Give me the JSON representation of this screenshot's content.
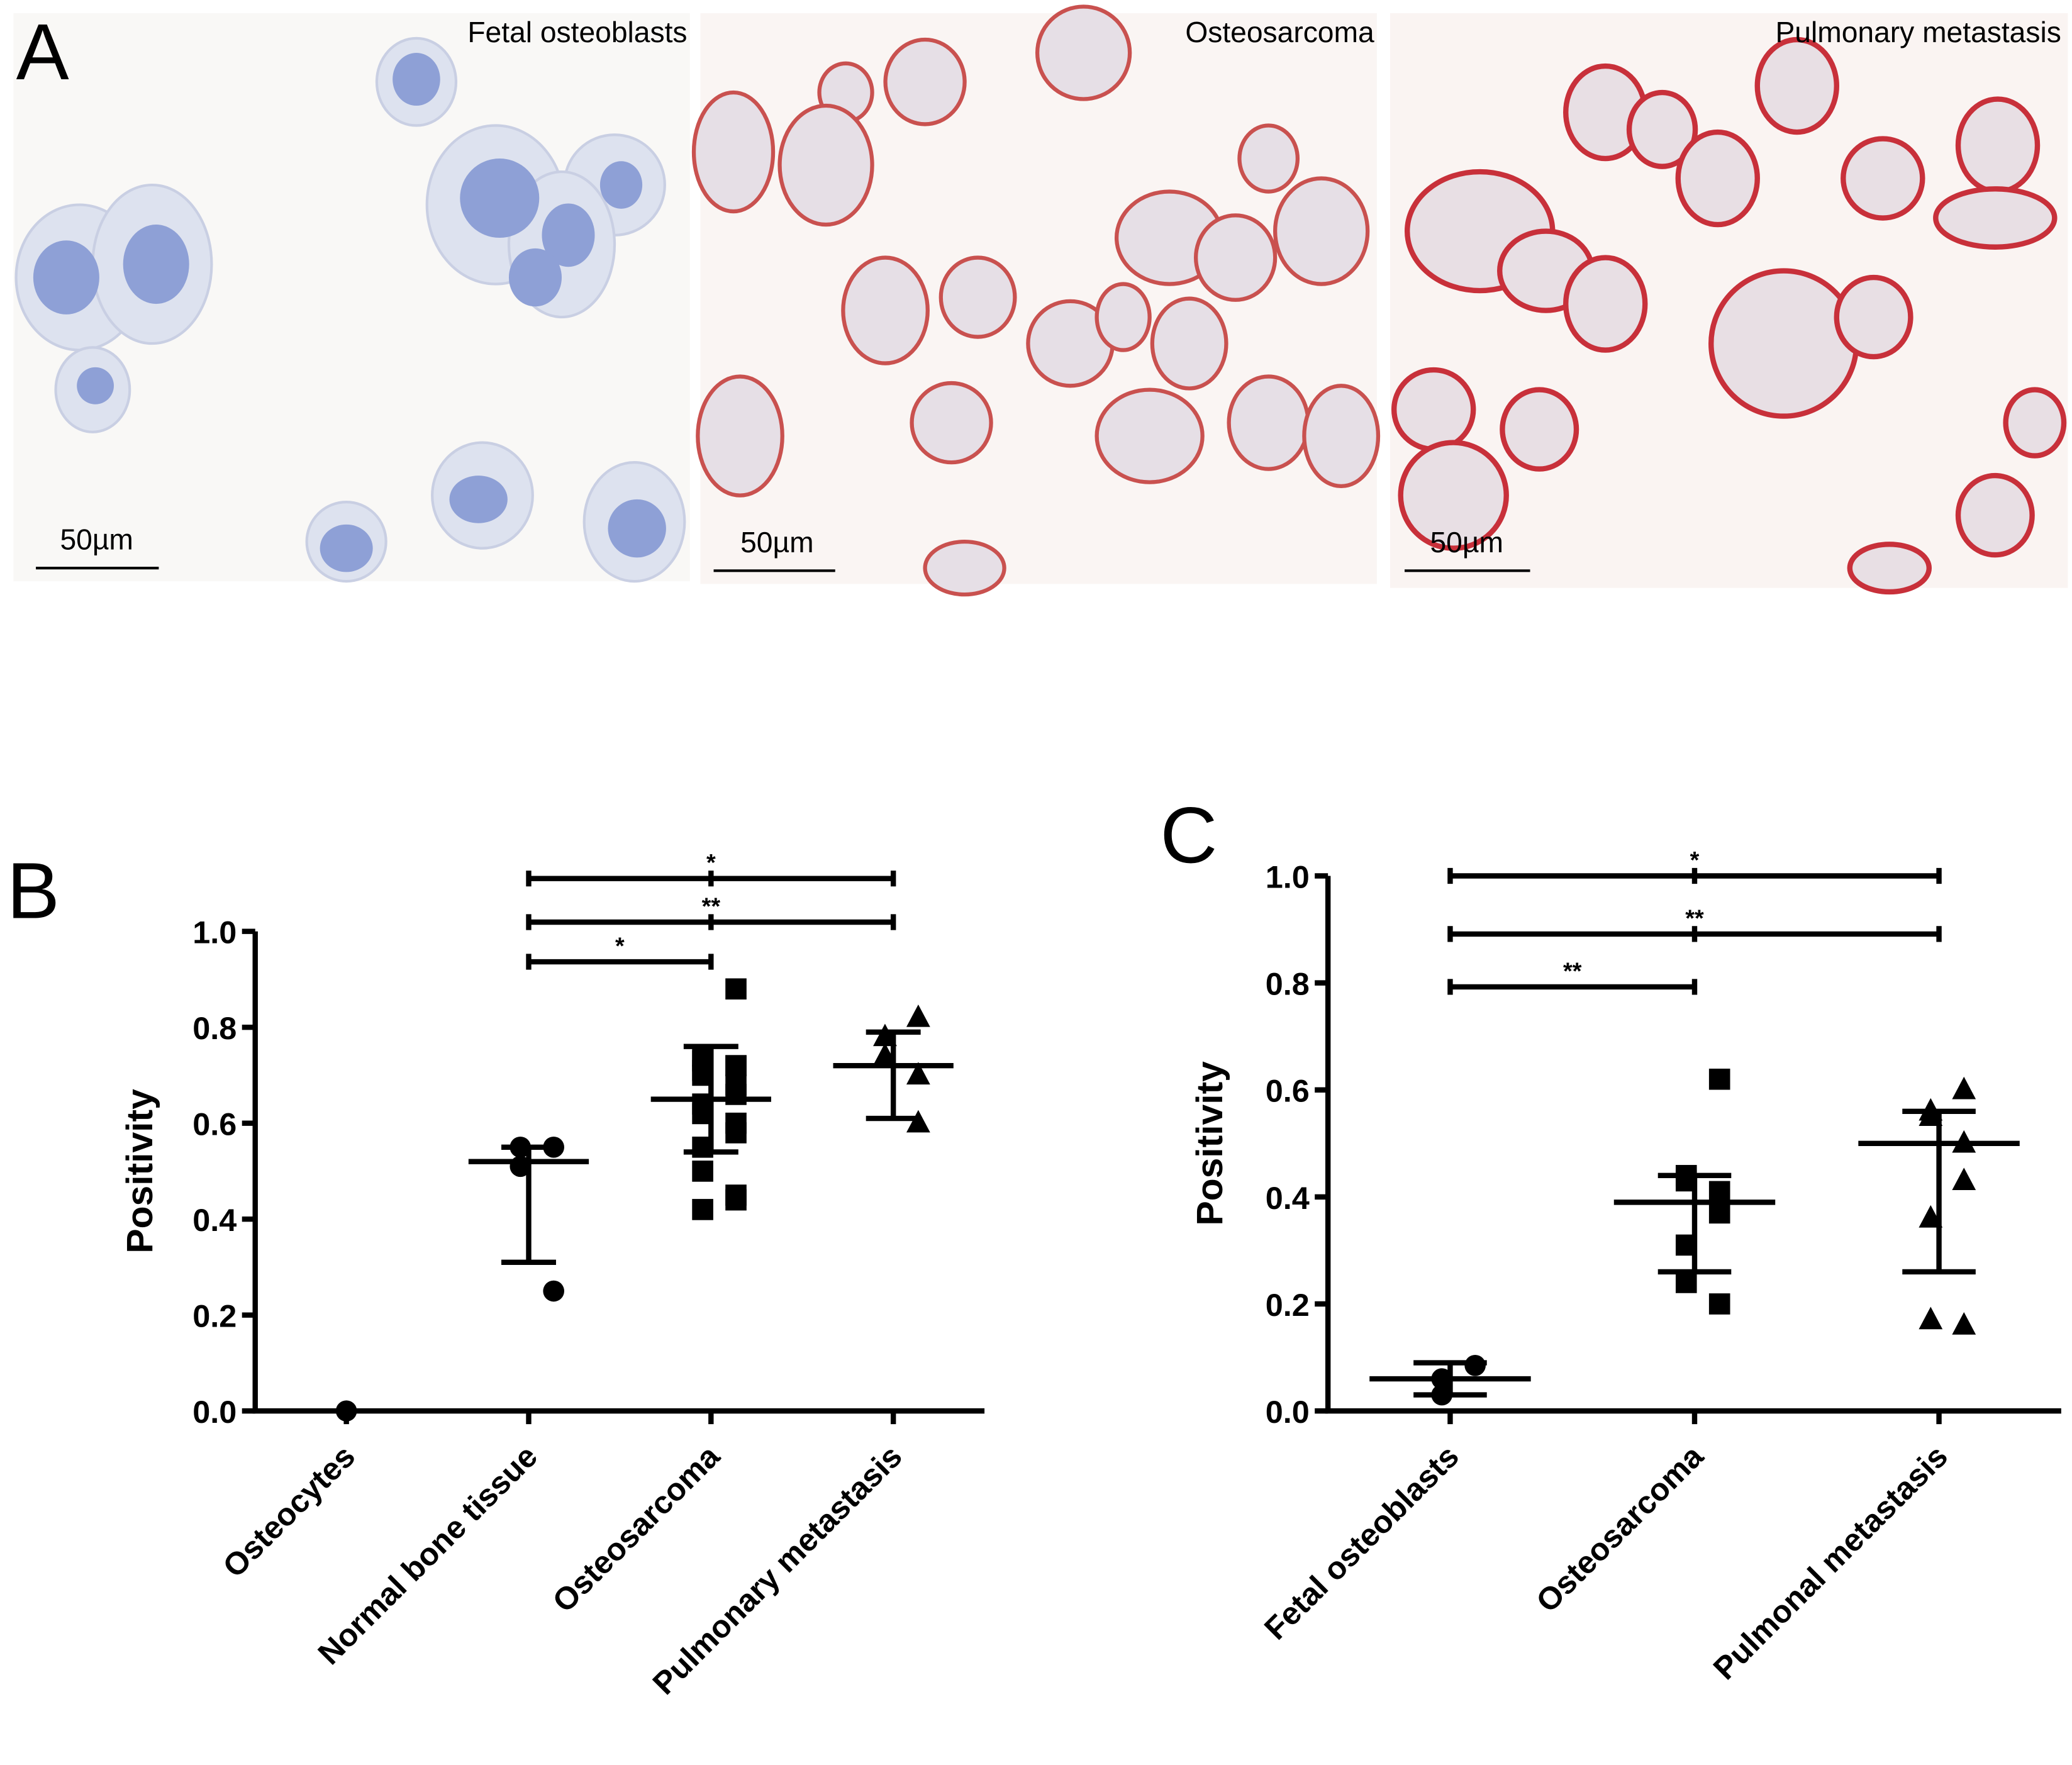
{
  "panel_a": {
    "label": "A",
    "images": [
      {
        "title": "Fetal osteoblasts",
        "scale_bar": "50µm"
      },
      {
        "title": "Osteosarcoma",
        "scale_bar": "50µm"
      },
      {
        "title": "Pulmonary metastasis",
        "scale_bar": "50µm"
      }
    ]
  },
  "chart_data": [
    {
      "type": "strip",
      "label": "B",
      "ylabel": "Positivity",
      "categories": [
        "Osteocytes",
        "Normal bone tissue",
        "Osteosarcoma",
        "Pulmonary metastasis"
      ],
      "markers": [
        "circle",
        "circle",
        "square",
        "triangle"
      ],
      "color": "#000000",
      "values": [
        [
          0
        ],
        [
          0.55,
          0.55,
          0.51,
          0.25
        ],
        [
          0.88,
          0.74,
          0.73,
          0.72,
          0.72,
          0.71,
          0.7,
          0.68,
          0.66,
          0.64,
          0.62,
          0.6,
          0.58,
          0.55,
          0.5,
          0.45,
          0.44,
          0.42
        ],
        [
          0.82,
          0.78,
          0.74,
          0.7,
          0.6
        ]
      ],
      "mean": [
        null,
        0.52,
        0.65,
        0.72
      ],
      "error_low": [
        null,
        0.31,
        0.54,
        0.61
      ],
      "error_high": [
        null,
        0.55,
        0.76,
        0.79
      ],
      "comparisons": [
        {
          "from": 1,
          "to": 3,
          "label": "*"
        },
        {
          "from": 1,
          "to": 3,
          "label": "**"
        },
        {
          "from": 1,
          "to": 2,
          "label": "*"
        }
      ],
      "ylim": [
        0,
        1
      ],
      "yticks": [
        {
          "value": 0,
          "label": "0.0"
        },
        0.2,
        0.4,
        0.6,
        0.8,
        {
          "value": 1,
          "label": "1.0"
        }
      ]
    },
    {
      "type": "strip",
      "label": "C",
      "ylabel": "Positivity",
      "categories": [
        "Fetal osteoblasts",
        "Osteosarcoma",
        "Pulmonal metastasis"
      ],
      "markers": [
        "circle",
        "square",
        "triangle"
      ],
      "color": "#000000",
      "values": [
        [
          0.085,
          0.06,
          0.03
        ],
        [
          0.62,
          0.44,
          0.43,
          0.41,
          0.37,
          0.31,
          0.24,
          0.2
        ],
        [
          0.6,
          0.56,
          0.55,
          0.5,
          0.43,
          0.36,
          0.17,
          0.16
        ]
      ],
      "mean": [
        0.06,
        0.39,
        0.5
      ],
      "error_low": [
        0.03,
        0.26,
        0.26
      ],
      "error_high": [
        0.09,
        0.44,
        0.56
      ],
      "comparisons": [
        {
          "from": 0,
          "to": 2,
          "label": "*"
        },
        {
          "from": 0,
          "to": 2,
          "label": "**"
        },
        {
          "from": 0,
          "to": 1,
          "label": "**"
        }
      ],
      "ylim": [
        0,
        1
      ],
      "yticks": [
        {
          "value": 0,
          "label": "0.0"
        },
        0.2,
        0.4,
        0.6,
        0.8,
        {
          "value": 1,
          "label": "1.0"
        }
      ]
    }
  ]
}
